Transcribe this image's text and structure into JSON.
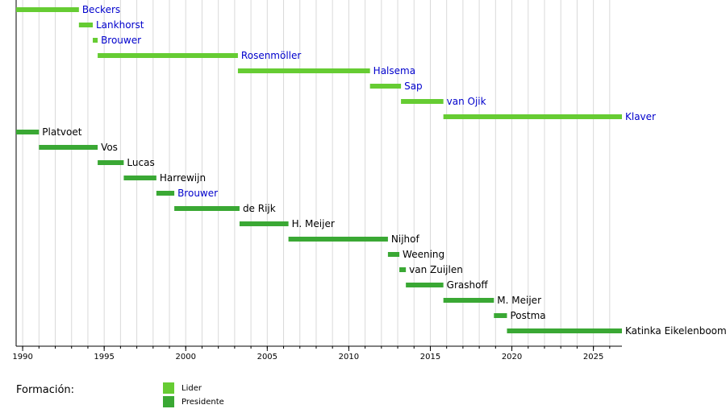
{
  "chart_data": {
    "type": "timeline",
    "x_range": [
      1989.6,
      2026.75
    ],
    "x_ticks": [
      1990,
      1995,
      2000,
      2005,
      2010,
      2015,
      2020,
      2025
    ],
    "grid": "vertical every year",
    "series": [
      {
        "name": "Lider",
        "color": "#66cc33"
      },
      {
        "name": "Presidente",
        "color": "#3aa834"
      }
    ],
    "bars": [
      {
        "label": "Beckers",
        "series": "Lider",
        "start": 1989.6,
        "end": 1993.45,
        "linked": true
      },
      {
        "label": "Lankhorst",
        "series": "Lider",
        "start": 1993.45,
        "end": 1994.3,
        "linked": true
      },
      {
        "label": "Brouwer",
        "series": "Lider",
        "start": 1994.3,
        "end": 1994.6,
        "linked": true
      },
      {
        "label": "Rosenmöller",
        "series": "Lider",
        "start": 1994.6,
        "end": 2003.2,
        "linked": true
      },
      {
        "label": "Halsema",
        "series": "Lider",
        "start": 2003.2,
        "end": 2011.3,
        "linked": true
      },
      {
        "label": "Sap",
        "series": "Lider",
        "start": 2011.3,
        "end": 2013.2,
        "linked": true
      },
      {
        "label": "van Ojik",
        "series": "Lider",
        "start": 2013.2,
        "end": 2015.8,
        "linked": true
      },
      {
        "label": "Klaver",
        "series": "Lider",
        "start": 2015.8,
        "end": 2026.75,
        "linked": true
      },
      {
        "label": "Platvoet",
        "series": "Presidente",
        "start": 1989.6,
        "end": 1991.0,
        "linked": false
      },
      {
        "label": "Vos",
        "series": "Presidente",
        "start": 1991.0,
        "end": 1994.6,
        "linked": false
      },
      {
        "label": "Lucas",
        "series": "Presidente",
        "start": 1994.6,
        "end": 1996.2,
        "linked": false
      },
      {
        "label": "Harrewijn",
        "series": "Presidente",
        "start": 1996.2,
        "end": 1998.2,
        "linked": false
      },
      {
        "label": "Brouwer",
        "series": "Presidente",
        "start": 1998.2,
        "end": 1999.3,
        "linked": true
      },
      {
        "label": "de Rijk",
        "series": "Presidente",
        "start": 1999.3,
        "end": 2003.3,
        "linked": false
      },
      {
        "label": "H. Meijer",
        "series": "Presidente",
        "start": 2003.3,
        "end": 2006.3,
        "linked": false
      },
      {
        "label": "Nijhof",
        "series": "Presidente",
        "start": 2006.3,
        "end": 2012.4,
        "linked": false
      },
      {
        "label": "Weening",
        "series": "Presidente",
        "start": 2012.4,
        "end": 2013.1,
        "linked": false
      },
      {
        "label": "van Zuijlen",
        "series": "Presidente",
        "start": 2013.1,
        "end": 2013.5,
        "linked": false
      },
      {
        "label": "Grashoff",
        "series": "Presidente",
        "start": 2013.5,
        "end": 2015.8,
        "linked": false
      },
      {
        "label": "M. Meijer",
        "series": "Presidente",
        "start": 2015.8,
        "end": 2018.9,
        "linked": false
      },
      {
        "label": "Postma",
        "series": "Presidente",
        "start": 2018.9,
        "end": 2019.7,
        "linked": false
      },
      {
        "label": "Katinka Eikelenboom",
        "series": "Presidente",
        "start": 2019.7,
        "end": 2026.75,
        "linked": false
      }
    ]
  },
  "legend": {
    "title": "Formación:",
    "items": [
      {
        "label": "Lider",
        "color": "#66cc33"
      },
      {
        "label": "Presidente",
        "color": "#3aa834"
      }
    ]
  },
  "colors": {
    "link_text": "#0000cc",
    "plain_text": "#000000",
    "grid": "#d9d9d9",
    "axis": "#000000"
  }
}
